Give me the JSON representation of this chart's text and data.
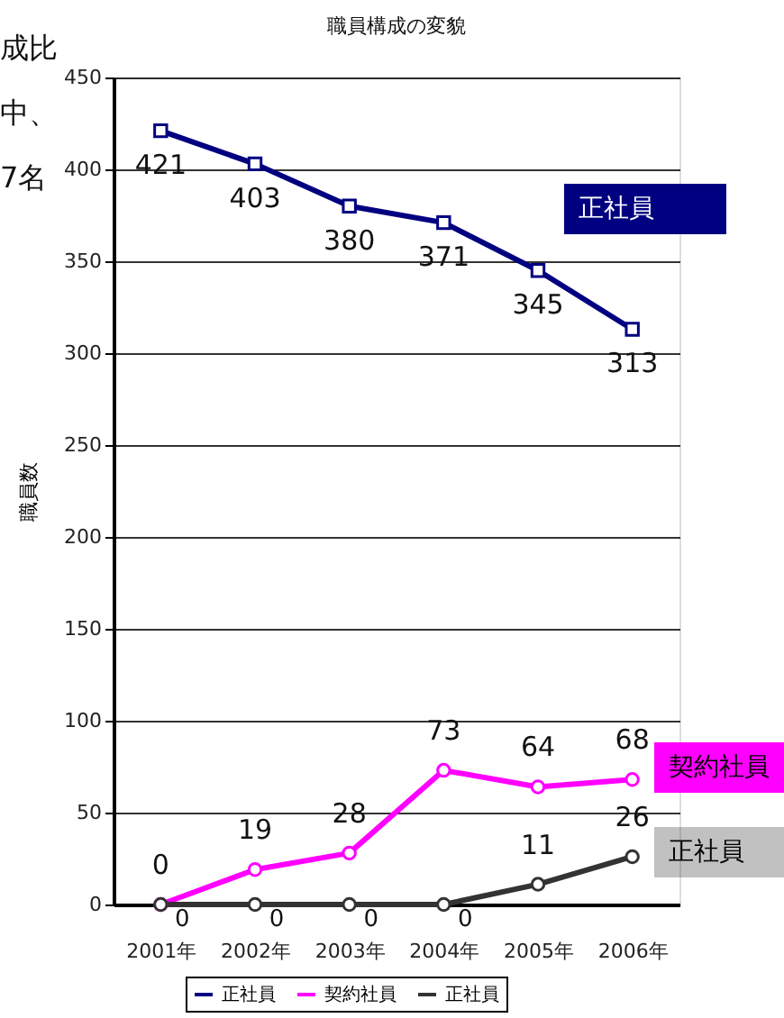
{
  "chart_data": {
    "type": "line",
    "title": "職員構成の変貌",
    "ylabel": "職員数",
    "categories": [
      "2001年",
      "2002年",
      "2003年",
      "2004年",
      "2005年",
      "2006年"
    ],
    "series": [
      {
        "name": "正社員",
        "color": "#000080",
        "marker": "square",
        "values": [
          421,
          403,
          380,
          371,
          345,
          313
        ]
      },
      {
        "name": "契約社員",
        "color": "#ff00ff",
        "marker": "circle",
        "values": [
          0,
          19,
          28,
          73,
          64,
          68
        ]
      },
      {
        "name": "正社員",
        "color": "#333333",
        "marker": "circle",
        "values": [
          0,
          0,
          0,
          0,
          11,
          26
        ]
      }
    ],
    "ylim": [
      0,
      450
    ],
    "yticks": [
      0,
      50,
      100,
      150,
      200,
      250,
      300,
      350,
      400,
      450
    ],
    "grid": "y",
    "legend": "bottom",
    "data_labels": true,
    "line_style": "solid",
    "annotations": [
      "正社員",
      "契約社員",
      "正社員",
      "成比",
      "中、",
      "7名"
    ]
  }
}
